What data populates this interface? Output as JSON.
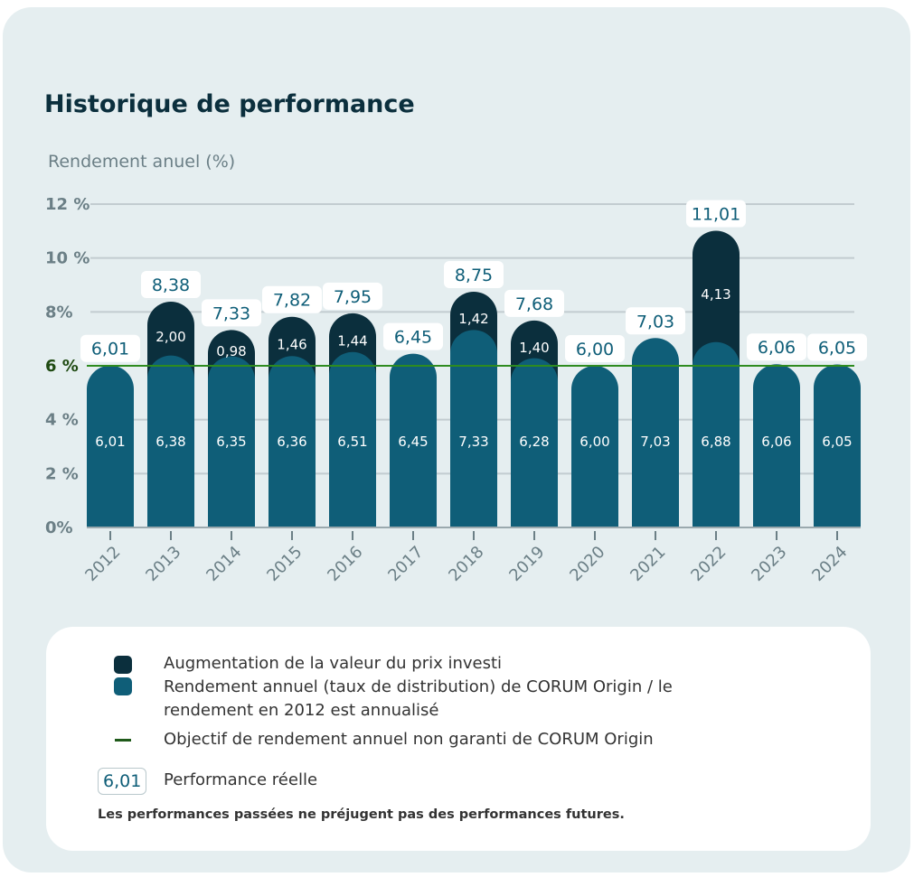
{
  "title": "Historique de performance",
  "colors": {
    "increase": "#0b2f3d",
    "base": "#0f5e78",
    "target": "#2e8b1f",
    "grid": "#c2ccd0"
  },
  "chart_data": {
    "type": "bar",
    "stacked": true,
    "ylabel": "Rendement anuel (%)",
    "ylim": [
      0,
      12
    ],
    "yticks": [
      {
        "v": 0,
        "label": "0%"
      },
      {
        "v": 2,
        "label": "2 %"
      },
      {
        "v": 4,
        "label": "4 %"
      },
      {
        "v": 6,
        "label": "6 %"
      },
      {
        "v": 8,
        "label": "8%"
      },
      {
        "v": 10,
        "label": "10 %"
      },
      {
        "v": 12,
        "label": "12 %"
      }
    ],
    "target": 6,
    "categories": [
      "2012",
      "2013",
      "2014",
      "2015",
      "2016",
      "2017",
      "2018",
      "2019",
      "2020",
      "2021",
      "2022",
      "2023",
      "2024"
    ],
    "series": [
      {
        "name": "Rendement annuel (taux de distribution) de CORUM Origin / le rendement en 2012 est annualisé",
        "values": [
          6.01,
          6.38,
          6.35,
          6.36,
          6.51,
          6.45,
          7.33,
          6.28,
          6.0,
          7.03,
          6.88,
          6.06,
          6.05
        ],
        "labels": [
          "6,01",
          "6,38",
          "6,35",
          "6,36",
          "6,51",
          "6,45",
          "7,33",
          "6,28",
          "6,00",
          "7,03",
          "6,88",
          "6,06",
          "6,05"
        ]
      },
      {
        "name": "Augmentation de la valeur du prix investi",
        "values": [
          0,
          2.0,
          0.98,
          1.46,
          1.44,
          0,
          1.42,
          1.4,
          0,
          0,
          4.13,
          0,
          0
        ],
        "labels": [
          "",
          "2,00",
          "0,98",
          "1,46",
          "1,44",
          "",
          "1,42",
          "1,40",
          "",
          "",
          "4,13",
          "",
          ""
        ]
      }
    ],
    "totals": [
      "6,01",
      "8,38",
      "7,33",
      "7,82",
      "7,95",
      "6,45",
      "8,75",
      "7,68",
      "6,00",
      "7,03",
      "11,01",
      "6,06",
      "6,05"
    ]
  },
  "legend": {
    "increase": "Augmentation de la valeur du prix investi",
    "base": "Rendement annuel (taux de distribution) de CORUM Origin / le rendement en 2012 est annualisé",
    "target": "Objectif de rendement annuel non garanti de CORUM Origin",
    "perf_sample": "6,01",
    "perf": "Performance réelle",
    "disclaimer": "Les performances passées ne préjugent pas des performances futures."
  }
}
